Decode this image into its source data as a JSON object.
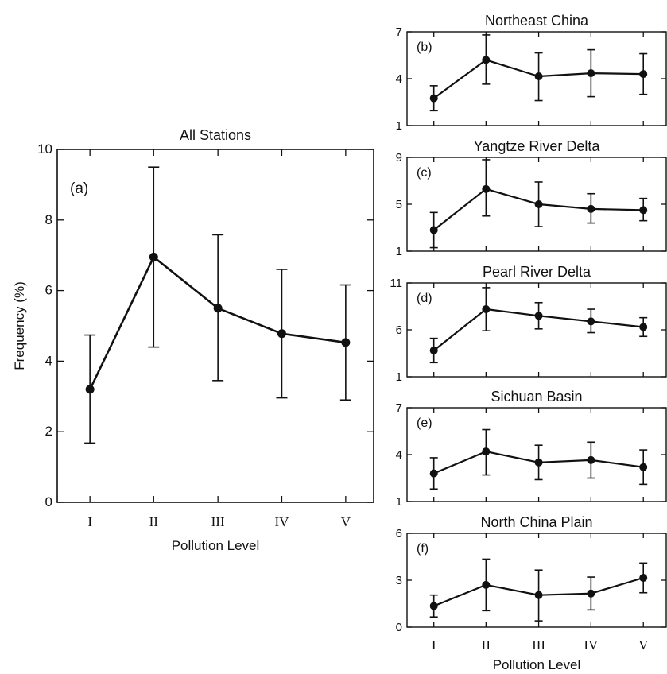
{
  "chart_data": [
    {
      "type": "line",
      "panel_label": "(a)",
      "title": "All Stations",
      "xlabel": "Pollution Level",
      "ylabel": "Frequency (%)",
      "categories": [
        "I",
        "II",
        "III",
        "IV",
        "V"
      ],
      "values": [
        3.2,
        6.95,
        5.5,
        4.78,
        4.53
      ],
      "error_low": [
        1.68,
        4.4,
        3.45,
        2.96,
        2.9
      ],
      "error_high": [
        4.74,
        9.5,
        7.58,
        6.6,
        6.16
      ],
      "ylim": [
        0,
        10
      ],
      "yticks": [
        "0",
        "2",
        "4",
        "6",
        "8",
        "10"
      ]
    },
    {
      "type": "line",
      "panel_label": "(b)",
      "title": "Northeast China",
      "categories": [
        "I",
        "II",
        "III",
        "IV",
        "V"
      ],
      "values": [
        2.75,
        5.2,
        4.15,
        4.35,
        4.3
      ],
      "error_low": [
        1.95,
        3.65,
        2.6,
        2.85,
        3.0
      ],
      "error_high": [
        3.55,
        6.8,
        5.65,
        5.85,
        5.6
      ],
      "ylim": [
        1,
        7
      ],
      "yticks": [
        "1",
        "4",
        "7"
      ]
    },
    {
      "type": "line",
      "panel_label": "(c)",
      "title": "Yangtze River Delta",
      "categories": [
        "I",
        "II",
        "III",
        "IV",
        "V"
      ],
      "values": [
        2.8,
        6.3,
        5.0,
        4.6,
        4.5
      ],
      "error_low": [
        1.3,
        4.0,
        3.1,
        3.4,
        3.6
      ],
      "error_high": [
        4.3,
        8.8,
        6.9,
        5.9,
        5.5
      ],
      "ylim": [
        1,
        9
      ],
      "yticks": [
        "1",
        "5",
        "9"
      ]
    },
    {
      "type": "line",
      "panel_label": "(d)",
      "title": "Pearl River Delta",
      "categories": [
        "I",
        "II",
        "III",
        "IV",
        "V"
      ],
      "values": [
        3.8,
        8.2,
        7.5,
        6.9,
        6.3
      ],
      "error_low": [
        2.5,
        5.9,
        6.1,
        5.7,
        5.3
      ],
      "error_high": [
        5.1,
        10.5,
        8.9,
        8.2,
        7.3
      ],
      "ylim": [
        1,
        11
      ],
      "yticks": [
        "1",
        "6",
        "11"
      ]
    },
    {
      "type": "line",
      "panel_label": "(e)",
      "title": "Sichuan Basin",
      "categories": [
        "I",
        "II",
        "III",
        "IV",
        "V"
      ],
      "values": [
        2.8,
        4.2,
        3.5,
        3.65,
        3.2
      ],
      "error_low": [
        1.8,
        2.7,
        2.4,
        2.5,
        2.1
      ],
      "error_high": [
        3.8,
        5.6,
        4.6,
        4.8,
        4.3
      ],
      "ylim": [
        1,
        7
      ],
      "yticks": [
        "1",
        "4",
        "7"
      ]
    },
    {
      "type": "line",
      "panel_label": "(f)",
      "title": "North China Plain",
      "xlabel": "Pollution Level",
      "categories": [
        "I",
        "II",
        "III",
        "IV",
        "V"
      ],
      "values": [
        1.35,
        2.7,
        2.05,
        2.15,
        3.15
      ],
      "error_low": [
        0.65,
        1.05,
        0.4,
        1.1,
        2.2
      ],
      "error_high": [
        2.05,
        4.35,
        3.65,
        3.2,
        4.1
      ],
      "ylim": [
        0,
        6
      ],
      "yticks": [
        "0",
        "3",
        "6"
      ]
    }
  ],
  "colors": {
    "line": "#111111",
    "background": "#ffffff"
  }
}
